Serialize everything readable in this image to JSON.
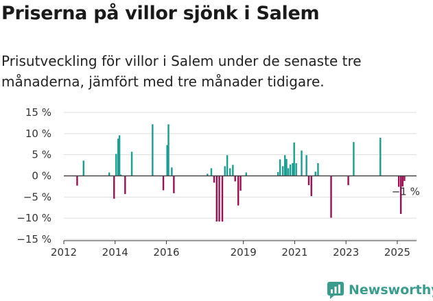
{
  "chart_data": {
    "type": "bar",
    "title": "Priserna på villor sjönk i Salem",
    "subtitle": "Prisutveckling för villor i Salem under de senaste tre månaderna, jämfört med tre månader tidigare.",
    "ylim": [
      -15,
      15
    ],
    "yticks": [
      "15 %",
      "10 %",
      "5 %",
      "0 %",
      "−5 %",
      "−10 %",
      "−15 %"
    ],
    "ytick_values": [
      15,
      10,
      5,
      0,
      -5,
      -10,
      -15
    ],
    "xticks": [
      "2012",
      "2014",
      "2016",
      "2019",
      "2021",
      "2023",
      "2025"
    ],
    "xtick_years": [
      2012,
      2014,
      2016,
      2019,
      2021,
      2023,
      2025
    ],
    "xlim": [
      2012.0,
      2025.75
    ],
    "grid": true,
    "colors": {
      "positive": "#1a9e91",
      "negative": "#9c0f53",
      "zero_line": "#444444",
      "grid": "#dddddd"
    },
    "annotation": {
      "text": "−1 %",
      "date": "2025.17"
    },
    "series": [
      {
        "dates": [
          2012.52,
          2012.77,
          2013.77,
          2013.96,
          2014.04,
          2014.12,
          2014.17,
          2014.22,
          2014.39,
          2014.65,
          2015.46,
          2015.88,
          2016.03,
          2016.08,
          2016.21,
          2016.29,
          2017.6,
          2017.75,
          2017.86,
          2017.96,
          2018.06,
          2018.18,
          2018.28,
          2018.37,
          2018.48,
          2018.59,
          2018.68,
          2018.8,
          2018.89,
          2019.11,
          2020.35,
          2020.43,
          2020.54,
          2020.62,
          2020.68,
          2020.75,
          2020.83,
          2020.92,
          2020.98,
          2021.06,
          2021.27,
          2021.46,
          2021.55,
          2021.65,
          2021.81,
          2021.91,
          2022.42,
          2023.09,
          2023.3,
          2024.34,
          2025.06,
          2025.14,
          2025.21,
          2025.28
        ],
        "values": [
          -2.3,
          3.6,
          0.8,
          -5.4,
          5.2,
          8.8,
          9.6,
          0.3,
          -4.3,
          5.7,
          12.2,
          -3.4,
          7.3,
          12.2,
          2.0,
          -4.1,
          0.5,
          1.8,
          -1.6,
          -10.8,
          -10.8,
          -10.8,
          2.3,
          4.9,
          1.8,
          2.6,
          -1.3,
          -7.0,
          -3.5,
          0.8,
          0.9,
          3.9,
          2.3,
          4.9,
          4.0,
          1.8,
          2.7,
          3.0,
          7.9,
          3.0,
          6.0,
          4.9,
          -2.2,
          -4.8,
          1.0,
          3.0,
          -9.9,
          -2.2,
          8.0,
          9.0,
          -2.6,
          -9.0,
          -2.5,
          -1.2
        ]
      }
    ]
  },
  "branding": {
    "logo_text": "Newsworthy",
    "logo_icon": "newsworthy-logo-icon"
  }
}
